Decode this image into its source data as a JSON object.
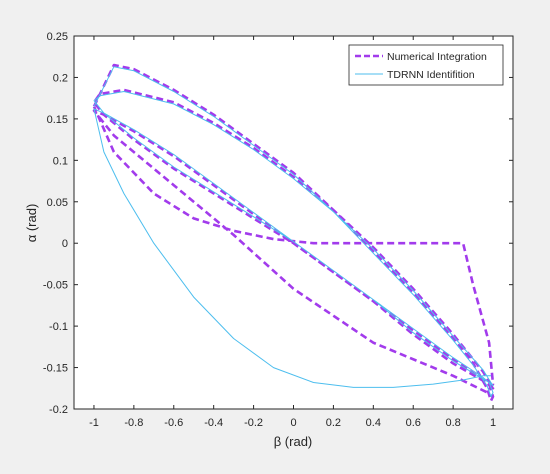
{
  "chart_data": {
    "type": "line",
    "title": "",
    "xlabel": "β (rad)",
    "ylabel": "α (rad)",
    "xlim": [
      -1.1,
      1.1
    ],
    "ylim": [
      -0.2,
      0.25
    ],
    "xticks": [
      -1,
      -0.8,
      -0.6,
      -0.4,
      -0.2,
      0,
      0.2,
      0.4,
      0.6,
      0.8,
      1
    ],
    "yticks": [
      -0.2,
      -0.15,
      -0.1,
      -0.05,
      0,
      0.05,
      0.1,
      0.15,
      0.2,
      0.25
    ],
    "xtick_labels": [
      "-1",
      "-0.8",
      "-0.6",
      "-0.4",
      "-0.2",
      "0",
      "0.2",
      "0.4",
      "0.6",
      "0.8",
      "1"
    ],
    "ytick_labels": [
      "-0.2",
      "-0.15",
      "-0.1",
      "-0.05",
      "0",
      "0.05",
      "0.1",
      "0.15",
      "0.2",
      "0.25"
    ],
    "grid": false,
    "legend_position": "top-right",
    "series": [
      {
        "name": "Numerical Integration",
        "color": "#a23bec",
        "style": "dashed",
        "x": [
          -1.0,
          -0.9,
          -0.8,
          -0.6,
          -0.4,
          -0.2,
          0.0,
          0.2,
          0.4,
          0.6,
          0.8,
          0.9,
          0.97,
          0.99,
          1.0,
          0.98,
          0.8,
          0.6,
          0.4,
          0.2,
          0.0,
          -0.3,
          -0.6,
          -0.8,
          -0.95,
          -1.0,
          -0.97,
          -0.85,
          -0.6,
          -0.4,
          -0.2,
          0.0,
          0.2,
          0.4,
          0.6,
          0.8,
          0.95,
          1.0,
          0.95,
          0.8,
          0.6,
          0.4,
          0.2,
          0.0,
          -0.2,
          -0.4,
          -0.6,
          -0.8,
          -0.95,
          -1.0,
          -0.9,
          -0.6,
          -0.3,
          0.0,
          0.4,
          0.8,
          0.97,
          1.0,
          0.98,
          0.9,
          0.85,
          0.8,
          0.7,
          0.5,
          0.3,
          0.1,
          -0.1,
          -0.3,
          -0.5,
          -0.7,
          -0.9,
          -1.0
        ],
        "y": [
          0.165,
          0.215,
          0.21,
          0.185,
          0.155,
          0.12,
          0.085,
          0.04,
          -0.01,
          -0.06,
          -0.115,
          -0.145,
          -0.175,
          -0.19,
          -0.185,
          -0.17,
          -0.145,
          -0.11,
          -0.07,
          -0.035,
          0.0,
          0.045,
          0.09,
          0.125,
          0.155,
          0.17,
          0.18,
          0.185,
          0.17,
          0.145,
          0.115,
          0.08,
          0.04,
          -0.005,
          -0.055,
          -0.11,
          -0.155,
          -0.175,
          -0.165,
          -0.14,
          -0.105,
          -0.07,
          -0.035,
          0.0,
          0.035,
          0.07,
          0.105,
          0.135,
          0.155,
          0.16,
          0.13,
          0.07,
          0.01,
          -0.055,
          -0.12,
          -0.16,
          -0.18,
          -0.17,
          -0.12,
          -0.05,
          0.0,
          0.0,
          0.0,
          0.0,
          0.0,
          0.0,
          0.005,
          0.015,
          0.03,
          0.06,
          0.11,
          0.165
        ]
      },
      {
        "name": "TDRNN Identifition",
        "color": "#4dbeee",
        "style": "solid",
        "x": [
          -1.0,
          -0.9,
          -0.8,
          -0.6,
          -0.4,
          -0.2,
          0.0,
          0.2,
          0.4,
          0.6,
          0.8,
          0.9,
          0.97,
          0.99,
          1.0,
          0.98,
          0.8,
          0.6,
          0.4,
          0.2,
          0.0,
          -0.3,
          -0.6,
          -0.8,
          -0.95,
          -1.0,
          -0.97,
          -0.85,
          -0.6,
          -0.4,
          -0.2,
          0.0,
          0.2,
          0.4,
          0.6,
          0.8,
          0.95,
          1.0,
          0.95,
          0.8,
          0.6,
          0.4,
          0.2,
          0.0,
          -0.2,
          -0.4,
          -0.6,
          -0.8,
          -0.95,
          -1.0,
          -0.95,
          -0.85,
          -0.7,
          -0.5,
          -0.3,
          -0.1,
          0.1,
          0.3,
          0.5,
          0.7,
          0.85,
          0.95,
          0.99
        ],
        "y": [
          0.165,
          0.213,
          0.208,
          0.183,
          0.153,
          0.118,
          0.083,
          0.038,
          -0.012,
          -0.062,
          -0.117,
          -0.147,
          -0.172,
          -0.185,
          -0.18,
          -0.168,
          -0.142,
          -0.108,
          -0.068,
          -0.033,
          0.002,
          0.047,
          0.092,
          0.127,
          0.157,
          0.172,
          0.178,
          0.183,
          0.168,
          0.143,
          0.113,
          0.078,
          0.038,
          -0.007,
          -0.057,
          -0.112,
          -0.153,
          -0.172,
          -0.162,
          -0.138,
          -0.103,
          -0.068,
          -0.033,
          0.002,
          0.037,
          0.072,
          0.107,
          0.137,
          0.157,
          0.162,
          0.11,
          0.06,
          0.0,
          -0.065,
          -0.115,
          -0.15,
          -0.168,
          -0.174,
          -0.174,
          -0.17,
          -0.165,
          -0.16,
          -0.16
        ]
      }
    ]
  }
}
